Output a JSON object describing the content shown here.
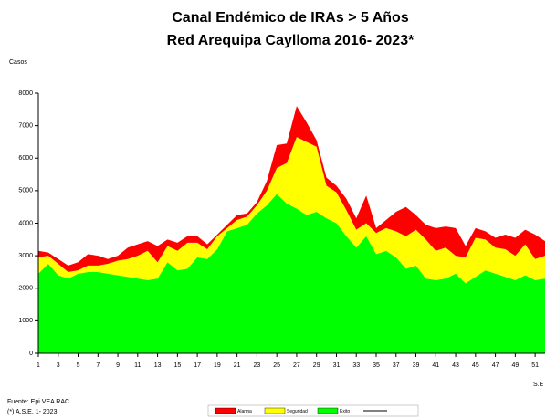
{
  "chart_data": {
    "type": "stacked_area",
    "title": "Canal Endémico de IRAs > 5 Años",
    "subtitle": "Red Arequipa Caylloma 2016- 2023*",
    "y_label": "Casos",
    "x_label": "S.E",
    "source": "Fuente: Epi VEA RAC",
    "note": "(*) A.S.E. 1- 2023",
    "x": [
      1,
      2,
      3,
      4,
      5,
      6,
      7,
      8,
      9,
      10,
      11,
      12,
      13,
      14,
      15,
      16,
      17,
      18,
      19,
      20,
      21,
      22,
      23,
      24,
      25,
      26,
      27,
      28,
      29,
      30,
      31,
      32,
      33,
      34,
      35,
      36,
      37,
      38,
      39,
      40,
      41,
      42,
      43,
      44,
      45,
      46,
      47,
      48,
      49,
      50,
      51,
      52
    ],
    "xlim": [
      1,
      52
    ],
    "xticks": [
      1,
      3,
      5,
      7,
      9,
      11,
      13,
      15,
      17,
      19,
      21,
      23,
      25,
      27,
      29,
      31,
      33,
      35,
      37,
      39,
      41,
      43,
      45,
      47,
      49,
      51
    ],
    "ylim": [
      0,
      8000
    ],
    "yticks": [
      0,
      1000,
      2000,
      3000,
      4000,
      5000,
      6000,
      7000,
      8000
    ],
    "grid": false,
    "series": [
      {
        "name": "Exito",
        "color": "#00ff00",
        "values": [
          2450,
          2750,
          2400,
          2300,
          2450,
          2500,
          2500,
          2450,
          2400,
          2350,
          2300,
          2250,
          2300,
          2800,
          2550,
          2600,
          2950,
          2900,
          3200,
          3750,
          3850,
          3950,
          4300,
          4550,
          4900,
          4600,
          4450,
          4250,
          4350,
          4150,
          4000,
          3600,
          3250,
          3600,
          3050,
          3150,
          2950,
          2600,
          2700,
          2300,
          2250,
          2300,
          2450,
          2150,
          2350,
          2550,
          2450,
          2350,
          2250,
          2400,
          2250,
          2300
        ]
      },
      {
        "name": "Seguridad",
        "color": "#ffff00",
        "values": [
          500,
          250,
          350,
          200,
          100,
          200,
          200,
          300,
          450,
          550,
          700,
          900,
          500,
          500,
          600,
          800,
          450,
          300,
          400,
          100,
          250,
          250,
          250,
          450,
          800,
          1250,
          2200,
          2250,
          2000,
          1000,
          950,
          800,
          550,
          400,
          650,
          700,
          800,
          1000,
          1100,
          1200,
          900,
          950,
          550,
          800,
          1200,
          950,
          800,
          850,
          750,
          950,
          650,
          700
        ]
      },
      {
        "name": "Alarma",
        "color": "#ff0000",
        "values": [
          200,
          100,
          150,
          200,
          250,
          350,
          300,
          150,
          150,
          350,
          350,
          300,
          500,
          200,
          250,
          200,
          200,
          150,
          50,
          100,
          150,
          100,
          100,
          300,
          700,
          600,
          950,
          600,
          200,
          250,
          200,
          350,
          350,
          850,
          150,
          250,
          600,
          900,
          450,
          450,
          700,
          650,
          850,
          350,
          300,
          250,
          300,
          450,
          550,
          450,
          750,
          450
        ]
      }
    ]
  }
}
